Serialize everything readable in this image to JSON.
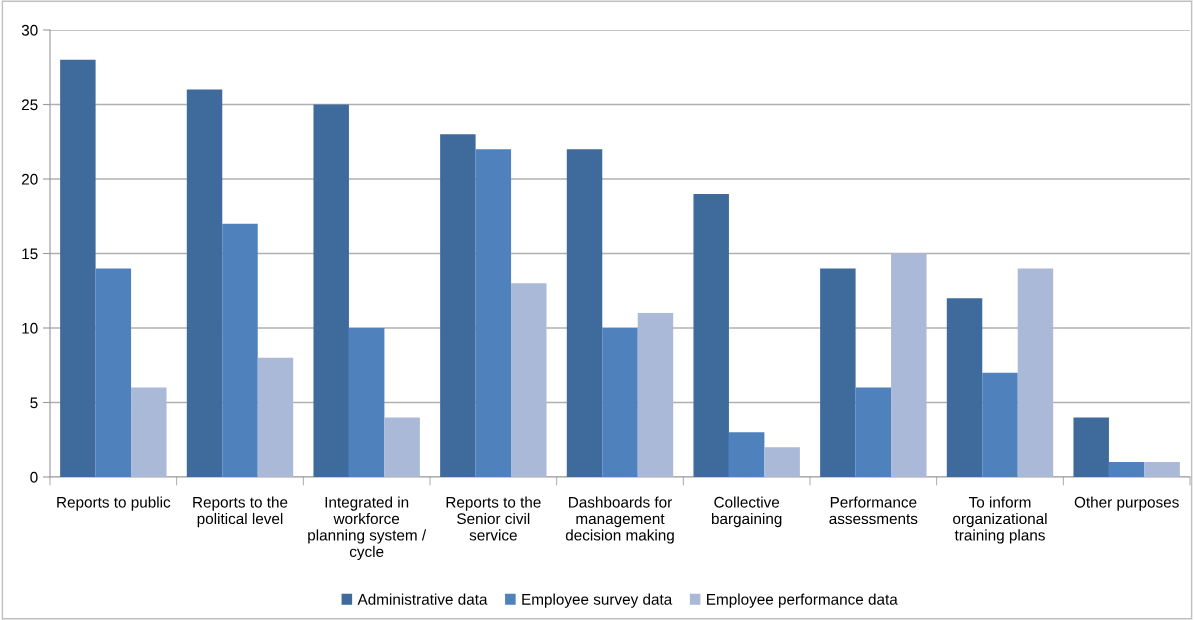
{
  "chart_data": {
    "type": "bar",
    "categories": [
      "Reports to public",
      "Reports to the\npolitical level",
      "Integrated in\nworkforce\nplanning system /\ncycle",
      "Reports to the\nSenior civil\nservice",
      "Dashboards for\nmanagement\ndecision making",
      "Collective\nbargaining",
      "Performance\nassessments",
      "To inform\norganizational\ntraining plans",
      "Other purposes"
    ],
    "series": [
      {
        "name": "Administrative data",
        "color": "#3e6a9c",
        "values": [
          28,
          26,
          25,
          23,
          22,
          19,
          14,
          12,
          4
        ]
      },
      {
        "name": "Employee survey data",
        "color": "#4f81bd",
        "values": [
          14,
          17,
          10,
          22,
          10,
          3,
          6,
          7,
          1
        ]
      },
      {
        "name": "Employee performance data",
        "color": "#aab9d8",
        "values": [
          6,
          8,
          4,
          13,
          11,
          2,
          15,
          14,
          1
        ]
      }
    ],
    "ylim": [
      0,
      30
    ],
    "yticks": [
      0,
      5,
      10,
      15,
      20,
      25,
      30
    ],
    "grid": "y",
    "legend": "bottom"
  }
}
